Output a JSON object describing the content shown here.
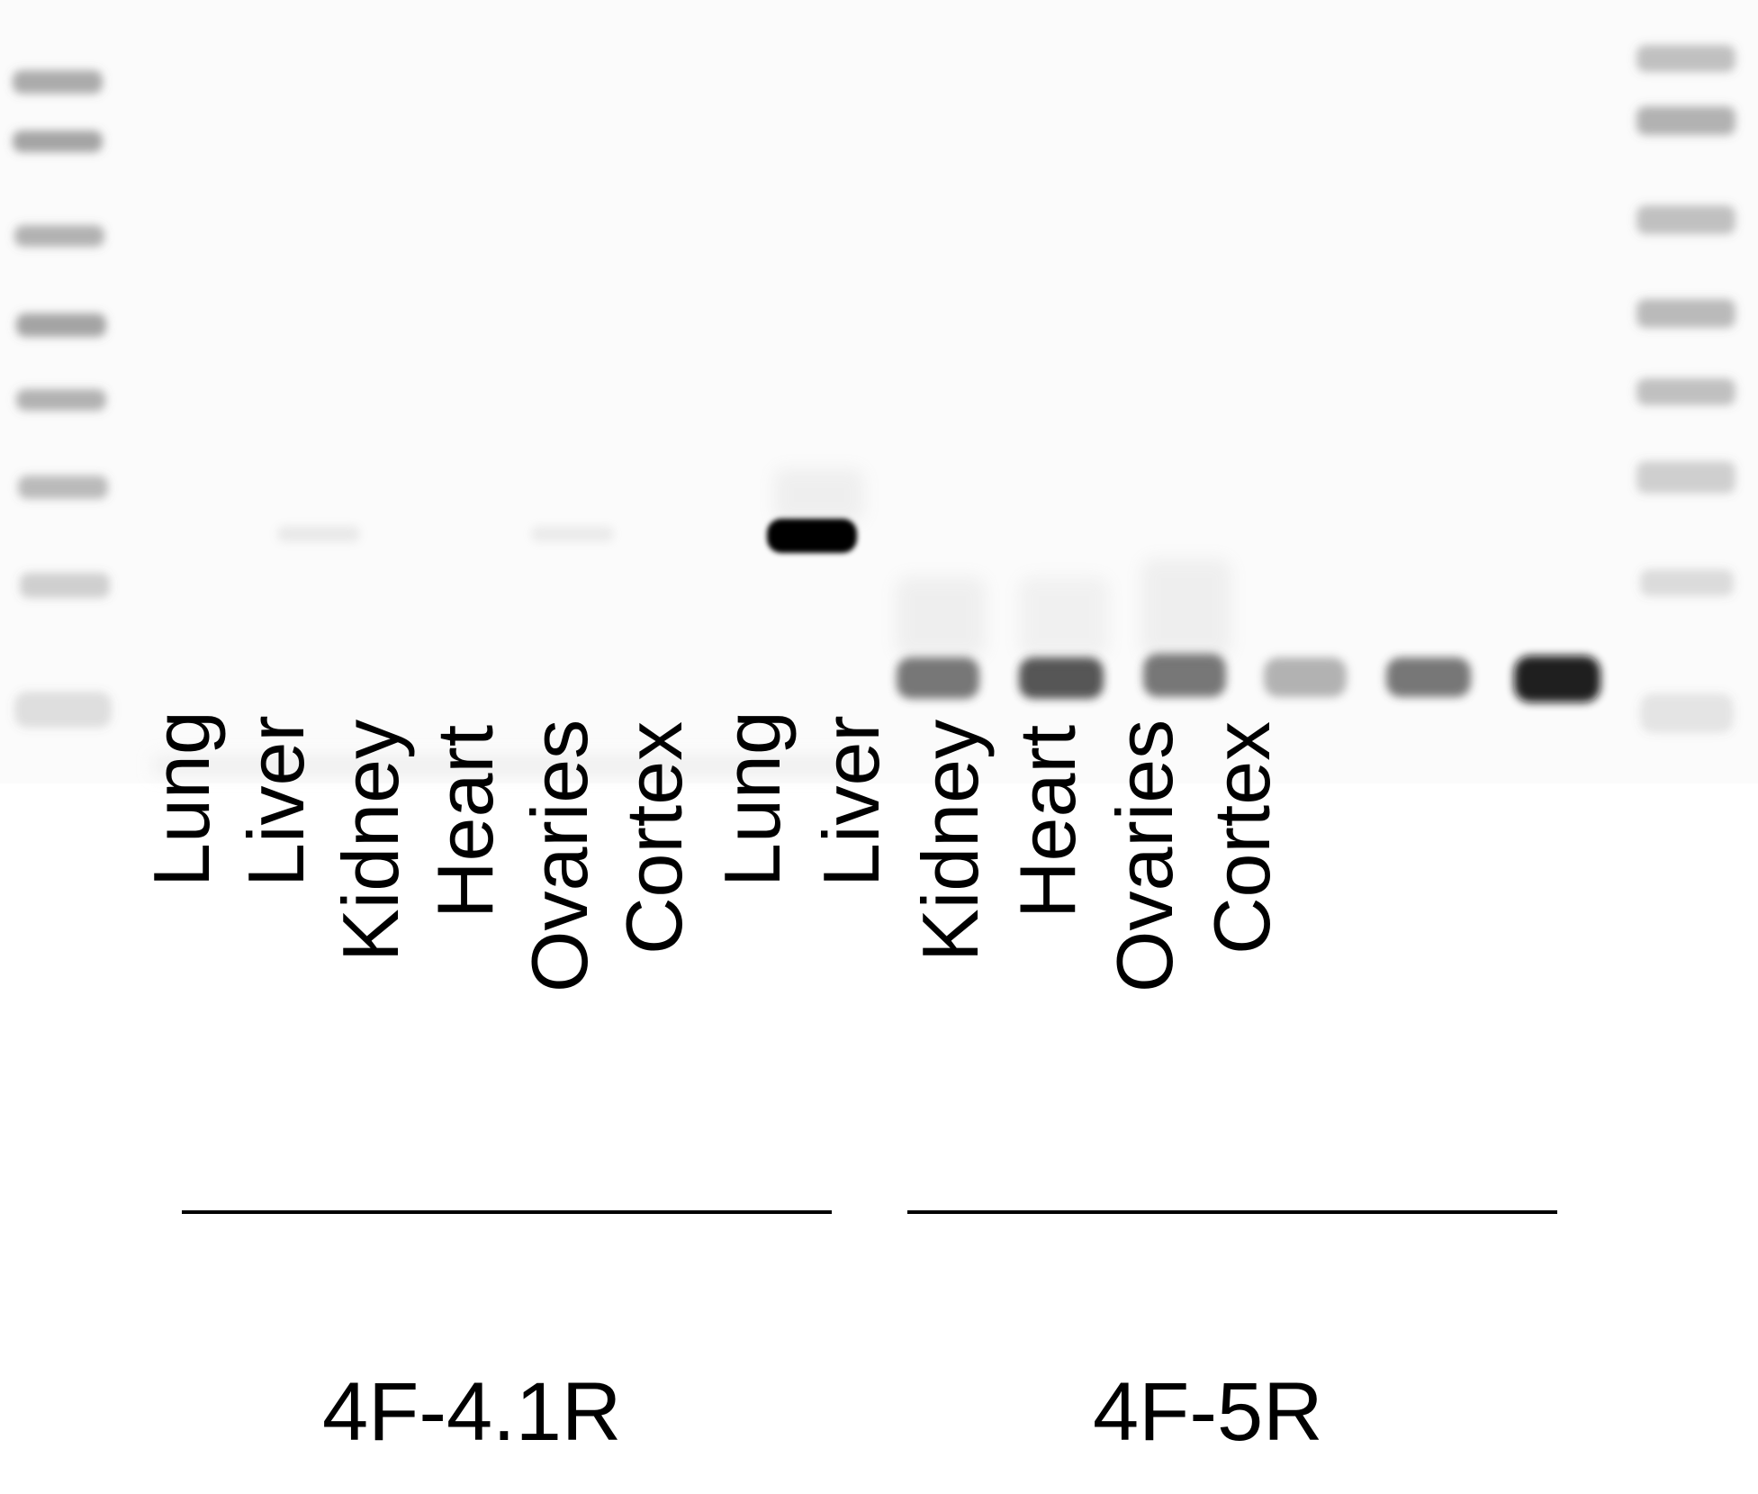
{
  "colors": {
    "background": "#ffffff",
    "band": "#000000",
    "text": "#000000"
  },
  "groups": [
    {
      "label": "4F-4.1R",
      "lanes": [
        "Lung",
        "Liver",
        "Kidney",
        "Heart",
        "Ovaries",
        "Cortex"
      ]
    },
    {
      "label": "4F-5R",
      "lanes": [
        "Lung",
        "Liver",
        "Kidney",
        "Heart",
        "Ovaries",
        "Cortex"
      ]
    }
  ]
}
